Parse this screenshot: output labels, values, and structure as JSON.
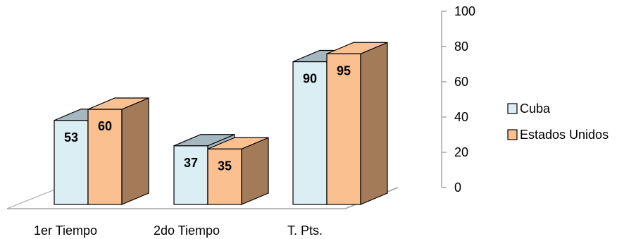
{
  "chart_data": {
    "type": "bar",
    "style": "3d-clustered-column",
    "categories": [
      "1er Tiempo",
      "2do Tiempo",
      "T. Pts."
    ],
    "series": [
      {
        "name": "Cuba",
        "values": [
          53,
          37,
          90
        ],
        "color": "#DBEEF4",
        "side_color": "#A5B8BF",
        "top_color": "#A5B8BF"
      },
      {
        "name": "Estados Unidos",
        "values": [
          60,
          35,
          95
        ],
        "color": "#FAC090",
        "side_color": "#A37B59",
        "top_color": "#FAC090"
      }
    ],
    "ylim": [
      0,
      100
    ],
    "yticks": [
      0,
      20,
      40,
      60,
      80,
      100
    ],
    "y_axis_side": "right",
    "legend_position": "right",
    "data_labels": true,
    "grid": false,
    "title": "",
    "xlabel": "",
    "ylabel": ""
  }
}
